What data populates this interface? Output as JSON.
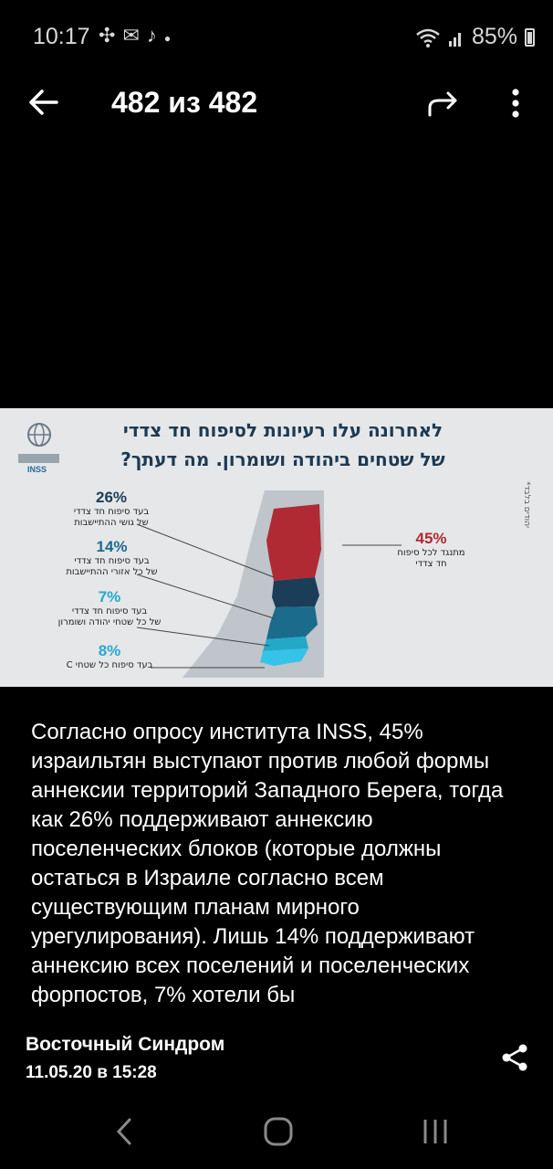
{
  "status_bar": {
    "time": "10:17",
    "notification_icons": [
      "messenger-icon",
      "mail-icon",
      "tiktok-icon",
      "dot-icon"
    ],
    "battery": "85%"
  },
  "header": {
    "counter": "482 из 482"
  },
  "image": {
    "title_line1": "לאחרונה עלו רעיונות לסיפוח חד צדדי",
    "title_line2": "של שטחים ביהודה ושומרון. מה דעתך?",
    "logo_text": "INSS",
    "side_note": "*יהודים בלבד",
    "items": [
      {
        "pct": "26%",
        "label1": "בעד סיפוח חד צדדי",
        "label2": "של גושי ההתיישבות",
        "color": "#1b3d57"
      },
      {
        "pct": "14%",
        "label1": "בעד סיפוח חד צדדי",
        "label2": "של כל אזורי ההתיישבות",
        "color": "#1b6b8c"
      },
      {
        "pct": "7%",
        "label1": "בעד סיפוח חד צדדי",
        "label2": "של כל שטחי יהודה ושומרון",
        "color": "#23a9c8"
      },
      {
        "pct": "8%",
        "label1": "בעד סיפוח כל שטחי C",
        "label2": "",
        "color": "#2aa7d4"
      }
    ],
    "oppose": {
      "pct": "45%",
      "label1": "מתנגד לכל סיפוח",
      "label2": "חד צדדי",
      "color": "#b02a33"
    }
  },
  "caption": "Согласно опросу института INSS, 45% израильтян выступают против любой формы аннексии территорий Западного Берега, тогда как 26% поддерживают аннексию поселенческих блоков (которые должны остаться в Израиле согласно всем существующим планам мирного урегулирования). Лишь 14% поддерживают аннексию всех поселений и поселенческих форпостов, 7% хотели бы",
  "footer": {
    "channel": "Восточный Синдром",
    "date": "11.05.20 в 15:28"
  }
}
